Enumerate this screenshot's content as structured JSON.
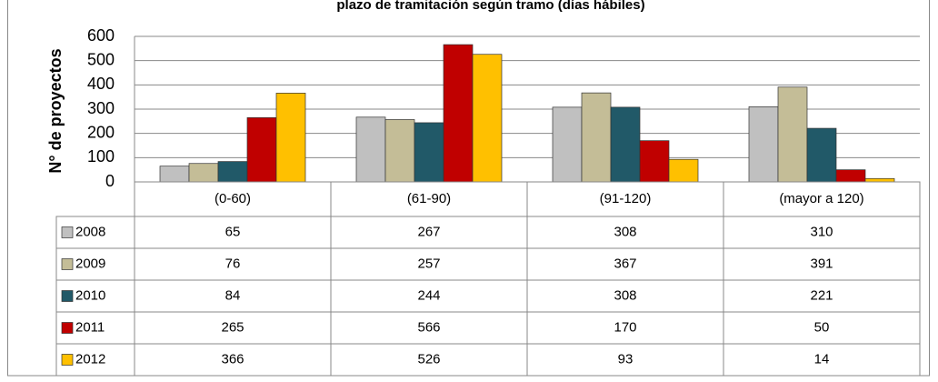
{
  "chart_data": {
    "type": "bar",
    "title": "plazo de tramitación según tramo (días hábiles)",
    "y_label": "N° de proyectos",
    "categories": [
      "(0-60)",
      "(61-90)",
      "(91-120)",
      "(mayor a 120)"
    ],
    "series": [
      {
        "name": "2008",
        "color": "#c0c0c0",
        "values": [
          65,
          267,
          308,
          310
        ]
      },
      {
        "name": "2009",
        "color": "#c4bd97",
        "values": [
          76,
          257,
          367,
          391
        ]
      },
      {
        "name": "2010",
        "color": "#215968",
        "values": [
          84,
          244,
          308,
          221
        ]
      },
      {
        "name": "2011",
        "color": "#c00000",
        "values": [
          265,
          566,
          170,
          50
        ]
      },
      {
        "name": "2012",
        "color": "#ffc000",
        "values": [
          366,
          526,
          93,
          14
        ]
      }
    ],
    "ylim": [
      0,
      600
    ],
    "yticks": [
      0,
      100,
      200,
      300,
      400,
      500,
      600
    ],
    "grid": true
  }
}
